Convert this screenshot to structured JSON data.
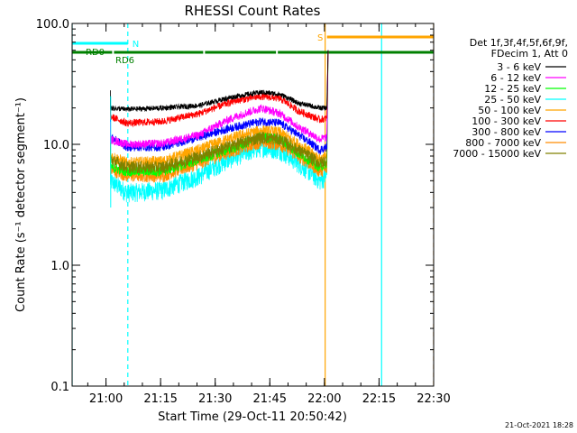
{
  "chart_data": {
    "type": "line",
    "title": "RHESSI Count Rates",
    "xlabel": "Start Time (29-Oct-11 20:50:42)",
    "ylabel": "Count Rate (s⁻¹ detector segment⁻¹)",
    "y_scale": "log",
    "ylim": [
      0.1,
      100
    ],
    "xlim_minutes_since_20_50_42": [
      0,
      99.3
    ],
    "x_ticks": [
      {
        "label": "21:00",
        "min": 9.3
      },
      {
        "label": "21:15",
        "min": 24.3
      },
      {
        "label": "21:30",
        "min": 39.3
      },
      {
        "label": "21:45",
        "min": 54.3
      },
      {
        "label": "22:00",
        "min": 69.3
      },
      {
        "label": "22:15",
        "min": 84.3
      },
      {
        "label": "22:30",
        "min": 99.3
      }
    ],
    "y_ticks": [
      {
        "label": "0.1",
        "v": 0.1
      },
      {
        "label": "1.0",
        "v": 1.0
      },
      {
        "label": "10.0",
        "v": 10.0
      },
      {
        "label": "100.0",
        "v": 100.0
      }
    ],
    "legend_header": [
      "Det 1f,3f,4f,5f,6f,9f,",
      "FDecim 1, Att 0"
    ],
    "series": [
      {
        "name": "3 - 6 keV",
        "color": "#000000",
        "points": [
          [
            10.5,
            20
          ],
          [
            15,
            19.5
          ],
          [
            25,
            20
          ],
          [
            35,
            21
          ],
          [
            45,
            25
          ],
          [
            52,
            27
          ],
          [
            57,
            26
          ],
          [
            62,
            22
          ],
          [
            68,
            20
          ],
          [
            70,
            20
          ]
        ]
      },
      {
        "name": "6 - 12 keV",
        "color": "#ff00ff",
        "points": [
          [
            10.5,
            11
          ],
          [
            15,
            10
          ],
          [
            25,
            10.2
          ],
          [
            35,
            12
          ],
          [
            45,
            17
          ],
          [
            52,
            20
          ],
          [
            57,
            18
          ],
          [
            62,
            14
          ],
          [
            68,
            11
          ],
          [
            70,
            11.5
          ]
        ]
      },
      {
        "name": "12 - 25 keV",
        "color": "#00ff00",
        "points": [
          [
            10.5,
            6.5
          ],
          [
            15,
            6
          ],
          [
            25,
            6
          ],
          [
            35,
            7.5
          ],
          [
            45,
            9.5
          ],
          [
            52,
            11.5
          ],
          [
            57,
            11
          ],
          [
            62,
            8.5
          ],
          [
            68,
            6.5
          ],
          [
            70,
            7
          ]
        ]
      },
      {
        "name": "25 - 50 keV",
        "color": "#00ffff",
        "points": [
          [
            10.5,
            5
          ],
          [
            15,
            4
          ],
          [
            25,
            4.2
          ],
          [
            35,
            5.5
          ],
          [
            45,
            8
          ],
          [
            52,
            9.5
          ],
          [
            57,
            9
          ],
          [
            62,
            7
          ],
          [
            68,
            5
          ],
          [
            70,
            5.5
          ]
        ]
      },
      {
        "name": "50 - 100 keV",
        "color": "#ffa500",
        "points": [
          [
            10.5,
            8
          ],
          [
            15,
            7
          ],
          [
            25,
            7.2
          ],
          [
            35,
            9
          ],
          [
            45,
            11.5
          ],
          [
            52,
            13
          ],
          [
            57,
            12.5
          ],
          [
            62,
            10
          ],
          [
            68,
            7.5
          ],
          [
            70,
            8
          ]
        ]
      },
      {
        "name": "100 - 300 keV",
        "color": "#ff0000",
        "points": [
          [
            10.5,
            17
          ],
          [
            15,
            15
          ],
          [
            25,
            15.5
          ],
          [
            35,
            18
          ],
          [
            45,
            23
          ],
          [
            52,
            25
          ],
          [
            57,
            24
          ],
          [
            62,
            19
          ],
          [
            68,
            16
          ],
          [
            70,
            16.5
          ]
        ]
      },
      {
        "name": "300 - 800 keV",
        "color": "#0000ff",
        "points": [
          [
            10.5,
            11.5
          ],
          [
            15,
            9.5
          ],
          [
            25,
            9.5
          ],
          [
            35,
            11.5
          ],
          [
            45,
            14
          ],
          [
            52,
            15.5
          ],
          [
            57,
            15
          ],
          [
            62,
            12
          ],
          [
            68,
            9
          ],
          [
            70,
            9.5
          ]
        ]
      },
      {
        "name": "800 - 7000 keV",
        "color": "#ff8c00",
        "points": [
          [
            10.5,
            6.2
          ],
          [
            15,
            5.5
          ],
          [
            25,
            5.5
          ],
          [
            35,
            7
          ],
          [
            45,
            9
          ],
          [
            52,
            10.5
          ],
          [
            57,
            10
          ],
          [
            62,
            8
          ],
          [
            68,
            6
          ],
          [
            70,
            6.3
          ]
        ]
      },
      {
        "name": "7000 - 15000 keV",
        "color": "#808000",
        "points": [
          [
            10.5,
            7.5
          ],
          [
            15,
            6.5
          ],
          [
            25,
            6.5
          ],
          [
            35,
            8
          ],
          [
            45,
            10
          ],
          [
            52,
            11.5
          ],
          [
            57,
            11
          ],
          [
            62,
            9
          ],
          [
            68,
            7
          ],
          [
            70,
            7.5
          ]
        ]
      }
    ],
    "flag_bars": [
      {
        "label": "N",
        "color": "#00ffff",
        "segments": [
          [
            0,
            15.3
          ]
        ],
        "level": "top"
      },
      {
        "label": "RD0",
        "color": "#008000",
        "segments": [
          [
            0,
            11
          ],
          [
            11.5,
            36
          ],
          [
            36.5,
            56
          ],
          [
            56.5,
            99.3
          ]
        ],
        "level": "mid"
      },
      {
        "label": "RD6",
        "color": "#008000",
        "segments": [],
        "level": "mid"
      },
      {
        "label": "S",
        "color": "#ffa500",
        "segments": [
          [
            70,
            99.3
          ]
        ],
        "level": "upper"
      }
    ],
    "vertical_markers": [
      {
        "min": 0,
        "color": "#00ffff",
        "style": "solid"
      },
      {
        "min": 15.3,
        "color": "#00ffff",
        "style": "dashed"
      },
      {
        "min": 69.5,
        "color": "#ffa500",
        "style": "solid"
      },
      {
        "min": 85,
        "color": "#00ffff",
        "style": "solid"
      },
      {
        "min": 99.3,
        "color": "#ffa500",
        "style": "dashed"
      }
    ],
    "grid": false,
    "legend_position": "right"
  },
  "footer": {
    "date": "21-Oct-2021 18:28"
  }
}
